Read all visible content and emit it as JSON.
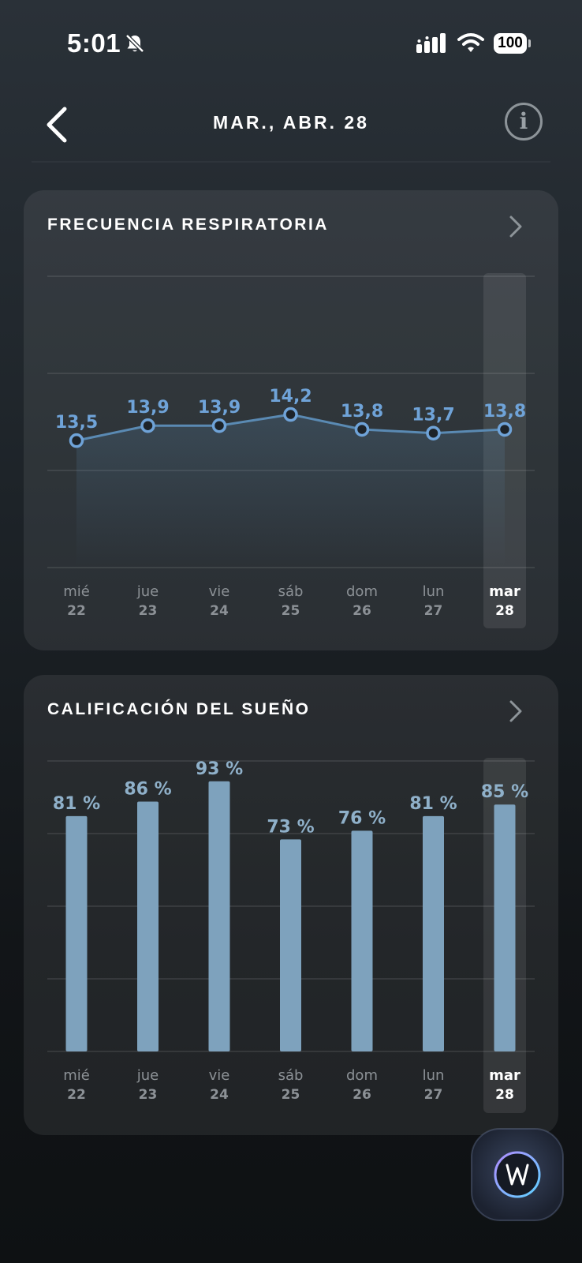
{
  "status_bar": {
    "time": "5:01",
    "battery": "100",
    "icons": [
      "bell-slash-icon",
      "signal-icon",
      "wifi-icon",
      "battery-icon"
    ]
  },
  "header": {
    "title": "MAR., ABR. 28",
    "back_icon": "chevron-left-icon",
    "info_icon": "info-icon",
    "info_glyph": "i"
  },
  "colors": {
    "accent": "#6fa3d8",
    "bar": "#7ea2bd",
    "bar_label": "#8fb0c9",
    "axis_label": "#8c9196"
  },
  "respiratory_card": {
    "title": "FRECUENCIA RESPIRATORIA",
    "chevron_icon": "chevron-right-icon",
    "chart_data": {
      "type": "line",
      "categories": [
        {
          "day": "mié",
          "date": "22"
        },
        {
          "day": "jue",
          "date": "23"
        },
        {
          "day": "vie",
          "date": "24"
        },
        {
          "day": "sáb",
          "date": "25"
        },
        {
          "day": "dom",
          "date": "26"
        },
        {
          "day": "lun",
          "date": "27"
        },
        {
          "day": "mar",
          "date": "28"
        }
      ],
      "values": [
        13.5,
        13.9,
        13.9,
        14.2,
        13.8,
        13.7,
        13.8
      ],
      "value_labels": [
        "13,5",
        "13,9",
        "13,9",
        "14,2",
        "13,8",
        "13,7",
        "13,8"
      ],
      "ylim": [
        10.1,
        17.9
      ],
      "grid": true,
      "selected_index": 6
    }
  },
  "sleep_card": {
    "title": "CALIFICACIÓN DEL SUEÑO",
    "chevron_icon": "chevron-right-icon",
    "chart_data": {
      "type": "bar",
      "categories": [
        {
          "day": "mié",
          "date": "22"
        },
        {
          "day": "jue",
          "date": "23"
        },
        {
          "day": "vie",
          "date": "24"
        },
        {
          "day": "sáb",
          "date": "25"
        },
        {
          "day": "dom",
          "date": "26"
        },
        {
          "day": "lun",
          "date": "27"
        },
        {
          "day": "mar",
          "date": "28"
        }
      ],
      "values": [
        81,
        86,
        93,
        73,
        76,
        81,
        85
      ],
      "value_labels": [
        "81 %",
        "86 %",
        "93 %",
        "73 %",
        "76 %",
        "81 %",
        "85 %"
      ],
      "ylim": [
        0,
        100
      ],
      "grid": true,
      "selected_index": 6
    }
  },
  "fab": {
    "icon": "assistant-logo-icon"
  }
}
